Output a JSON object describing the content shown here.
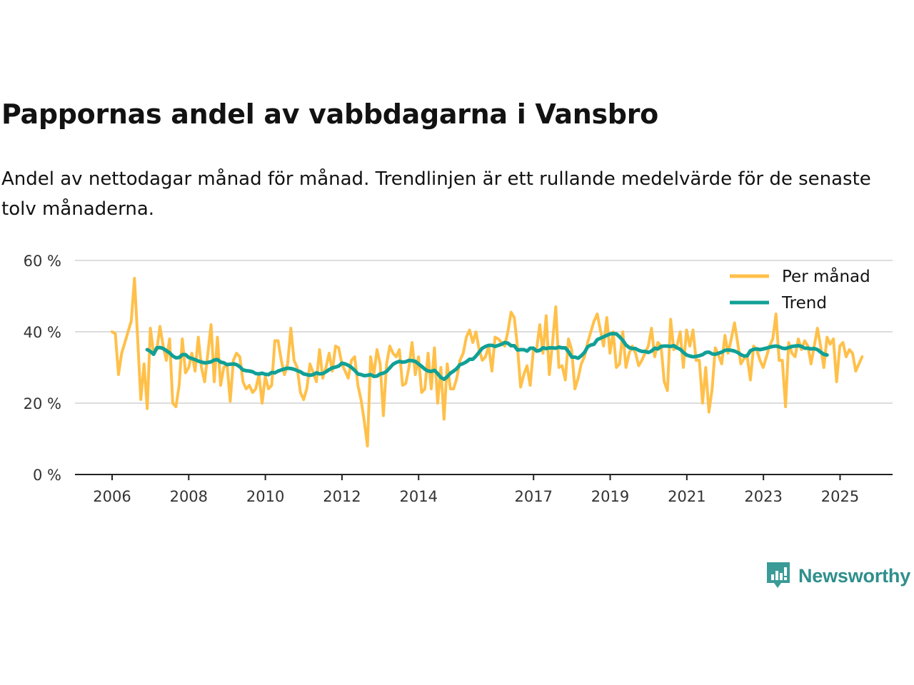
{
  "colors": {
    "monthly": "#ffc04a",
    "trend": "#11a096",
    "grid": "#dddddd",
    "axis": "#222222",
    "brand": "#2f8f8c"
  },
  "chart_data": {
    "type": "line",
    "title": "Pappornas andel av vabbdagarna i Vansbro",
    "subtitle": "Andel av nettodagar månad för månad. Trendlinjen är ett rullande medelvärde för de senaste tolv månaderna.",
    "xlabel": "",
    "ylabel": "",
    "ylim": [
      0,
      60
    ],
    "yticks": [
      0,
      20,
      40,
      60
    ],
    "ytick_labels": [
      "0 %",
      "20 %",
      "40 %",
      "60 %"
    ],
    "xlim": [
      2006,
      2025.42
    ],
    "xticks": [
      2006,
      2008,
      2010,
      2012,
      2014,
      2017,
      2019,
      2021,
      2023,
      2025
    ],
    "xtick_labels": [
      "2006",
      "2008",
      "2010",
      "2012",
      "2014",
      "2017",
      "2019",
      "2021",
      "2023",
      "2025"
    ],
    "grid": true,
    "legend_position": "top-right",
    "series": [
      {
        "name": "Per månad",
        "x_start": 2006.0,
        "step": 0.0833,
        "values": [
          40,
          39.5,
          28,
          34,
          37,
          40,
          43,
          55,
          38,
          21,
          31,
          18.5,
          41,
          34,
          35,
          41.5,
          36,
          32,
          38,
          20,
          19,
          25,
          38,
          28.5,
          30,
          34,
          29,
          38.5,
          30,
          26,
          34,
          42,
          26,
          38.5,
          25,
          30,
          31,
          20.5,
          32,
          34,
          33,
          26,
          24,
          25,
          23,
          24,
          28,
          20,
          27.5,
          24,
          25,
          37.5,
          37.5,
          32,
          28,
          31,
          41,
          32,
          30,
          23,
          21,
          24,
          31,
          28.5,
          26,
          35,
          27,
          30,
          34,
          29,
          36,
          35.5,
          31,
          29,
          27,
          32,
          33,
          25,
          21,
          15,
          8,
          33,
          28,
          35,
          31,
          16.5,
          31,
          36,
          34,
          33,
          35,
          25,
          25.5,
          30,
          37,
          28,
          33,
          23,
          24,
          34,
          24,
          35.5,
          20,
          30,
          15.5,
          31,
          24,
          24,
          27,
          32,
          34,
          38.5,
          40.5,
          37,
          40,
          35,
          32,
          33,
          36,
          29,
          38.5,
          38,
          37,
          36,
          40,
          45.5,
          44,
          36,
          24.5,
          28,
          30.5,
          25,
          35,
          35,
          42,
          34,
          44.5,
          28,
          37,
          47,
          30,
          30.5,
          26.5,
          38,
          35,
          24,
          27,
          31,
          33,
          37,
          40,
          43,
          45,
          40.5,
          36,
          44,
          34,
          40,
          30,
          31,
          40,
          30,
          34,
          36,
          34,
          30.5,
          32,
          34,
          36,
          41,
          33,
          37,
          36,
          26,
          23.5,
          43.5,
          35,
          36,
          40,
          30,
          40.5,
          36,
          40.5,
          32,
          32,
          20,
          30,
          17.5,
          24,
          35.5,
          33.5,
          31,
          39,
          34,
          38,
          42.5,
          37,
          31,
          32.5,
          33,
          26.5,
          36,
          35,
          32,
          30,
          33,
          36,
          38,
          45,
          32,
          32,
          19,
          37,
          34,
          33,
          38,
          35,
          37.5,
          36,
          31,
          36,
          41,
          36,
          30,
          38.5,
          36.5,
          38,
          26,
          36,
          37,
          33,
          35,
          34,
          29,
          31,
          33
        ]
      },
      {
        "name": "Trend",
        "x_start": 2006.917,
        "step": 0.0833,
        "values": [
          35,
          34.5,
          33.7,
          35.5,
          35.6,
          35.3,
          34.7,
          34.1,
          33.2,
          32.7,
          32.8,
          33.6,
          33.6,
          32.8,
          32.5,
          32.2,
          31.8,
          31.5,
          31.3,
          31.4,
          31.6,
          32.1,
          32.2,
          31.5,
          31.3,
          30.8,
          30.9,
          31,
          30.8,
          30.2,
          29.3,
          29.1,
          29,
          28.8,
          28.3,
          28.2,
          28.4,
          28.1,
          28,
          28.6,
          28.5,
          29,
          29.3,
          29.6,
          29.8,
          29.7,
          29.5,
          29.1,
          28.8,
          28.2,
          28,
          27.8,
          28,
          28.5,
          28.2,
          28.3,
          28.8,
          29.4,
          29.9,
          30.1,
          30.4,
          31.2,
          31,
          30.6,
          30,
          29.2,
          28.2,
          28,
          27.7,
          27.8,
          28,
          27.5,
          27.6,
          28.2,
          28.4,
          28.9,
          29.9,
          30.9,
          31.4,
          31.7,
          31.5,
          31.6,
          32,
          31.9,
          31.7,
          31,
          30.3,
          29.5,
          29,
          28.9,
          29.2,
          28.3,
          27.2,
          26.7,
          27.4,
          28.4,
          29,
          29.7,
          30.8,
          31.1,
          31.6,
          32.3,
          32.3,
          33.2,
          34.3,
          35.4,
          35.9,
          36.2,
          36.2,
          35.9,
          36.2,
          36.5,
          37,
          36.8,
          36.1,
          36.1,
          34.9,
          35,
          35,
          34.6,
          35.4,
          35.4,
          34.6,
          34.8,
          35.5,
          35.3,
          35.5,
          35.5,
          35.4,
          35.7,
          35.5,
          35.5,
          34.4,
          32.9,
          32.9,
          32.6,
          33.3,
          34.2,
          35.8,
          36.3,
          36.5,
          37.8,
          38.2,
          38.6,
          39,
          39.4,
          39.5,
          39.4,
          38.6,
          37.6,
          36.3,
          35.6,
          35.3,
          35.3,
          34.8,
          34.5,
          34.5,
          34.2,
          34.6,
          35.4,
          35.2,
          35.9,
          36,
          36,
          35.9,
          36.1,
          35.5,
          35.1,
          34.2,
          33.5,
          33.2,
          33,
          33.1,
          33.3,
          33.6,
          34.2,
          34.3,
          33.8,
          33.7,
          34,
          34.3,
          34.8,
          34.9,
          34.8,
          34.6,
          34.2,
          33.6,
          33.2,
          33.3,
          34.7,
          35.1,
          35.2,
          35,
          35.2,
          35.4,
          35.7,
          35.9,
          36,
          35.8,
          35.4,
          35.3,
          35.6,
          35.9,
          36,
          36.1,
          35.9,
          35.4,
          35.4,
          35.2,
          35.3,
          35,
          34.3,
          33.7,
          33.5
        ]
      }
    ]
  },
  "brand": {
    "name": "Newsworthy",
    "icon": "newsworthy-logo-icon"
  }
}
